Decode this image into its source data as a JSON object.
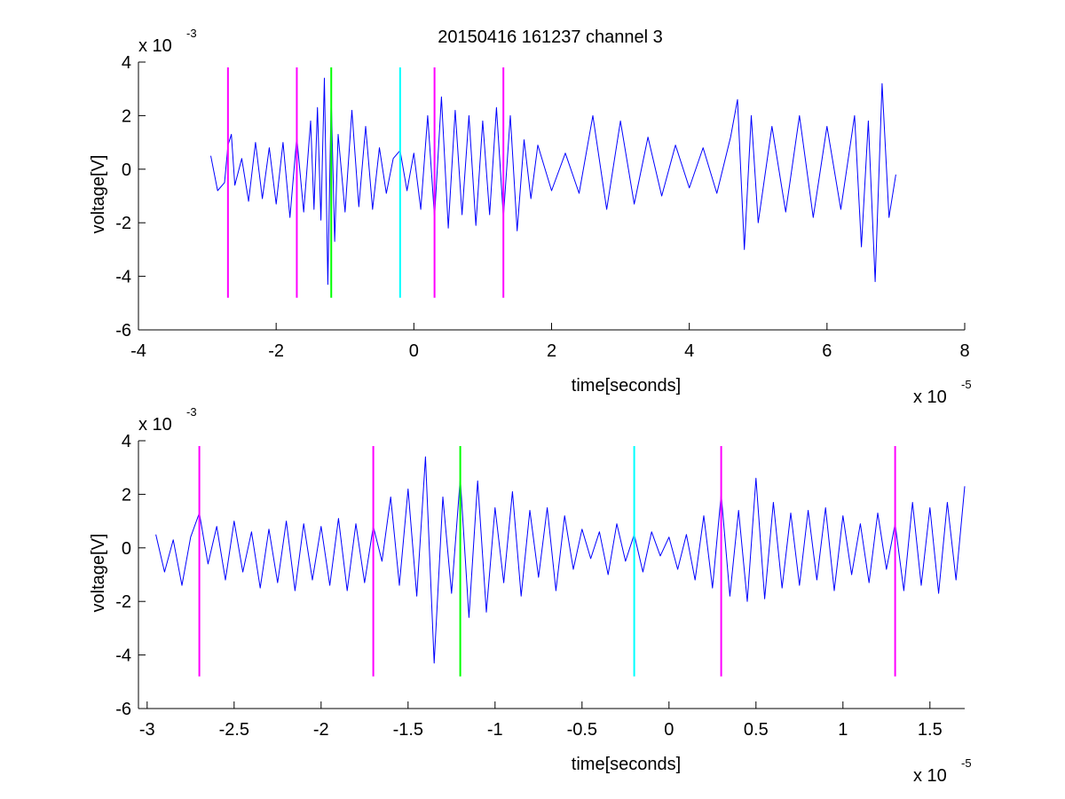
{
  "figure": {
    "title": "20150416 161237 channel 3",
    "colors": {
      "signal": "#0000ff",
      "magenta": "#ff00ff",
      "green": "#00ff00",
      "cyan": "#00ffff",
      "axis": "#000000"
    }
  },
  "chart_data": [
    {
      "type": "line",
      "title": "20150416 161237 channel 3",
      "xlabel": "time[seconds]",
      "ylabel": "voltage[V]",
      "x_exponent_label": "x 10",
      "x_exponent_power": "-5",
      "y_exponent_label": "x 10",
      "y_exponent_power": "-3",
      "xlim": [
        -4,
        8
      ],
      "ylim": [
        -6,
        4
      ],
      "xticks": [
        -4,
        -2,
        0,
        2,
        4,
        6,
        8
      ],
      "xtick_labels": [
        "-4",
        "-2",
        "0",
        "2",
        "4",
        "6",
        "8"
      ],
      "yticks": [
        -6,
        -4,
        -2,
        0,
        2,
        4
      ],
      "ytick_labels": [
        "-6",
        "-4",
        "-2",
        "0",
        "2",
        "4"
      ],
      "grid": false,
      "series": [
        {
          "color": "#0000ff",
          "x": [
            -2.95,
            -2.85,
            -2.75,
            -2.7,
            -2.65,
            -2.6,
            -2.5,
            -2.4,
            -2.3,
            -2.2,
            -2.1,
            -2.0,
            -1.9,
            -1.8,
            -1.7,
            -1.6,
            -1.5,
            -1.45,
            -1.4,
            -1.35,
            -1.3,
            -1.25,
            -1.2,
            -1.15,
            -1.1,
            -1.0,
            -0.9,
            -0.8,
            -0.7,
            -0.6,
            -0.5,
            -0.4,
            -0.3,
            -0.2,
            -0.1,
            0.0,
            0.1,
            0.2,
            0.3,
            0.4,
            0.5,
            0.6,
            0.7,
            0.8,
            0.9,
            1.0,
            1.1,
            1.2,
            1.3,
            1.4,
            1.5,
            1.6,
            1.7,
            1.8,
            2.0,
            2.2,
            2.4,
            2.6,
            2.8,
            3.0,
            3.2,
            3.4,
            3.6,
            3.8,
            4.0,
            4.2,
            4.4,
            4.6,
            4.7,
            4.8,
            4.9,
            5.0,
            5.2,
            5.4,
            5.6,
            5.8,
            6.0,
            6.2,
            6.4,
            6.5,
            6.6,
            6.7,
            6.8,
            6.9,
            7.0
          ],
          "y": [
            0.5,
            -0.8,
            -0.5,
            0.9,
            1.3,
            -0.6,
            0.4,
            -1.2,
            1.0,
            -1.1,
            0.8,
            -1.3,
            1.0,
            -1.8,
            1.2,
            -1.6,
            1.8,
            -1.5,
            2.3,
            -1.9,
            3.4,
            -4.3,
            2.7,
            -2.7,
            1.3,
            -1.6,
            2.2,
            -1.4,
            1.6,
            -1.5,
            0.8,
            -0.9,
            0.4,
            0.7,
            -0.8,
            0.6,
            -1.5,
            2.0,
            -1.8,
            2.7,
            -2.2,
            2.2,
            -1.7,
            2.0,
            -2.1,
            1.8,
            -1.7,
            2.3,
            -1.8,
            2.0,
            -2.3,
            1.1,
            -1.1,
            0.9,
            -0.8,
            0.6,
            -0.9,
            2.0,
            -1.5,
            1.8,
            -1.3,
            1.2,
            -1.0,
            0.9,
            -0.7,
            0.8,
            -0.9,
            1.2,
            2.6,
            -3.0,
            2.0,
            -2.0,
            1.6,
            -1.6,
            2.0,
            -1.8,
            1.6,
            -1.5,
            2.0,
            -2.9,
            1.8,
            -4.2,
            3.2,
            -1.8,
            -0.2
          ]
        }
      ],
      "markers": [
        {
          "x": -2.7,
          "color": "#ff00ff",
          "ymin": -4.8,
          "ymax": 3.8
        },
        {
          "x": -1.7,
          "color": "#ff00ff",
          "ymin": -4.8,
          "ymax": 3.8
        },
        {
          "x": -1.2,
          "color": "#00ff00",
          "ymin": -4.8,
          "ymax": 3.8
        },
        {
          "x": -0.2,
          "color": "#00ffff",
          "ymin": -4.8,
          "ymax": 3.8
        },
        {
          "x": 0.3,
          "color": "#ff00ff",
          "ymin": -4.8,
          "ymax": 3.8
        },
        {
          "x": 1.3,
          "color": "#ff00ff",
          "ymin": -4.8,
          "ymax": 3.8
        }
      ]
    },
    {
      "type": "line",
      "title": "",
      "xlabel": "time[seconds]",
      "ylabel": "voltage[V]",
      "x_exponent_label": "x 10",
      "x_exponent_power": "-5",
      "y_exponent_label": "x 10",
      "y_exponent_power": "-3",
      "xlim": [
        -3.05,
        1.7
      ],
      "ylim": [
        -6,
        4
      ],
      "xticks": [
        -3,
        -2.5,
        -2,
        -1.5,
        -1,
        -0.5,
        0,
        0.5,
        1,
        1.5
      ],
      "xtick_labels": [
        "-3",
        "-2.5",
        "-2",
        "-1.5",
        "-1",
        "-0.5",
        "0",
        "0.5",
        "1",
        "1.5"
      ],
      "yticks": [
        -6,
        -4,
        -2,
        0,
        2,
        4
      ],
      "ytick_labels": [
        "-6",
        "-4",
        "-2",
        "0",
        "2",
        "4"
      ],
      "grid": false,
      "series": [
        {
          "color": "#0000ff",
          "x": [
            -2.95,
            -2.9,
            -2.85,
            -2.8,
            -2.75,
            -2.7,
            -2.65,
            -2.6,
            -2.55,
            -2.5,
            -2.45,
            -2.4,
            -2.35,
            -2.3,
            -2.25,
            -2.2,
            -2.15,
            -2.1,
            -2.05,
            -2.0,
            -1.95,
            -1.9,
            -1.85,
            -1.8,
            -1.75,
            -1.7,
            -1.65,
            -1.6,
            -1.55,
            -1.5,
            -1.45,
            -1.4,
            -1.35,
            -1.3,
            -1.25,
            -1.2,
            -1.15,
            -1.1,
            -1.05,
            -1.0,
            -0.95,
            -0.9,
            -0.85,
            -0.8,
            -0.75,
            -0.7,
            -0.65,
            -0.6,
            -0.55,
            -0.5,
            -0.45,
            -0.4,
            -0.35,
            -0.3,
            -0.25,
            -0.2,
            -0.15,
            -0.1,
            -0.05,
            0.0,
            0.05,
            0.1,
            0.15,
            0.2,
            0.25,
            0.3,
            0.35,
            0.4,
            0.45,
            0.5,
            0.55,
            0.6,
            0.65,
            0.7,
            0.75,
            0.8,
            0.85,
            0.9,
            0.95,
            1.0,
            1.05,
            1.1,
            1.15,
            1.2,
            1.25,
            1.3,
            1.35,
            1.4,
            1.45,
            1.5,
            1.55,
            1.6,
            1.65,
            1.7
          ],
          "y": [
            0.5,
            -0.9,
            0.3,
            -1.4,
            0.4,
            1.3,
            -0.6,
            0.8,
            -1.2,
            1.0,
            -0.9,
            0.6,
            -1.5,
            0.7,
            -1.3,
            1.0,
            -1.6,
            0.9,
            -1.2,
            0.8,
            -1.4,
            1.1,
            -1.6,
            0.9,
            -1.3,
            0.8,
            -0.5,
            1.9,
            -1.4,
            2.2,
            -1.8,
            3.4,
            -4.3,
            1.9,
            -1.7,
            2.6,
            -2.6,
            2.5,
            -2.4,
            1.5,
            -1.3,
            2.1,
            -1.8,
            1.4,
            -1.1,
            1.5,
            -1.6,
            1.2,
            -0.8,
            0.7,
            -0.4,
            0.6,
            -1.0,
            0.9,
            -0.5,
            0.5,
            -0.9,
            0.6,
            -0.3,
            0.4,
            -0.8,
            0.5,
            -1.2,
            1.2,
            -1.5,
            2.0,
            -1.8,
            1.4,
            -2.0,
            2.6,
            -1.9,
            1.7,
            -1.5,
            1.3,
            -1.4,
            1.4,
            -1.2,
            1.5,
            -1.6,
            1.2,
            -1.0,
            0.9,
            -1.3,
            1.3,
            -0.8,
            0.9,
            -1.6,
            1.7,
            -1.4,
            1.5,
            -1.7,
            1.7,
            -1.2,
            2.3
          ]
        }
      ],
      "markers": [
        {
          "x": -2.7,
          "color": "#ff00ff",
          "ymin": -4.8,
          "ymax": 3.8
        },
        {
          "x": -1.7,
          "color": "#ff00ff",
          "ymin": -4.8,
          "ymax": 3.8
        },
        {
          "x": -1.2,
          "color": "#00ff00",
          "ymin": -4.8,
          "ymax": 3.8
        },
        {
          "x": -0.2,
          "color": "#00ffff",
          "ymin": -4.8,
          "ymax": 3.8
        },
        {
          "x": 0.3,
          "color": "#ff00ff",
          "ymin": -4.8,
          "ymax": 3.8
        },
        {
          "x": 1.3,
          "color": "#ff00ff",
          "ymin": -4.8,
          "ymax": 3.8
        }
      ]
    }
  ]
}
